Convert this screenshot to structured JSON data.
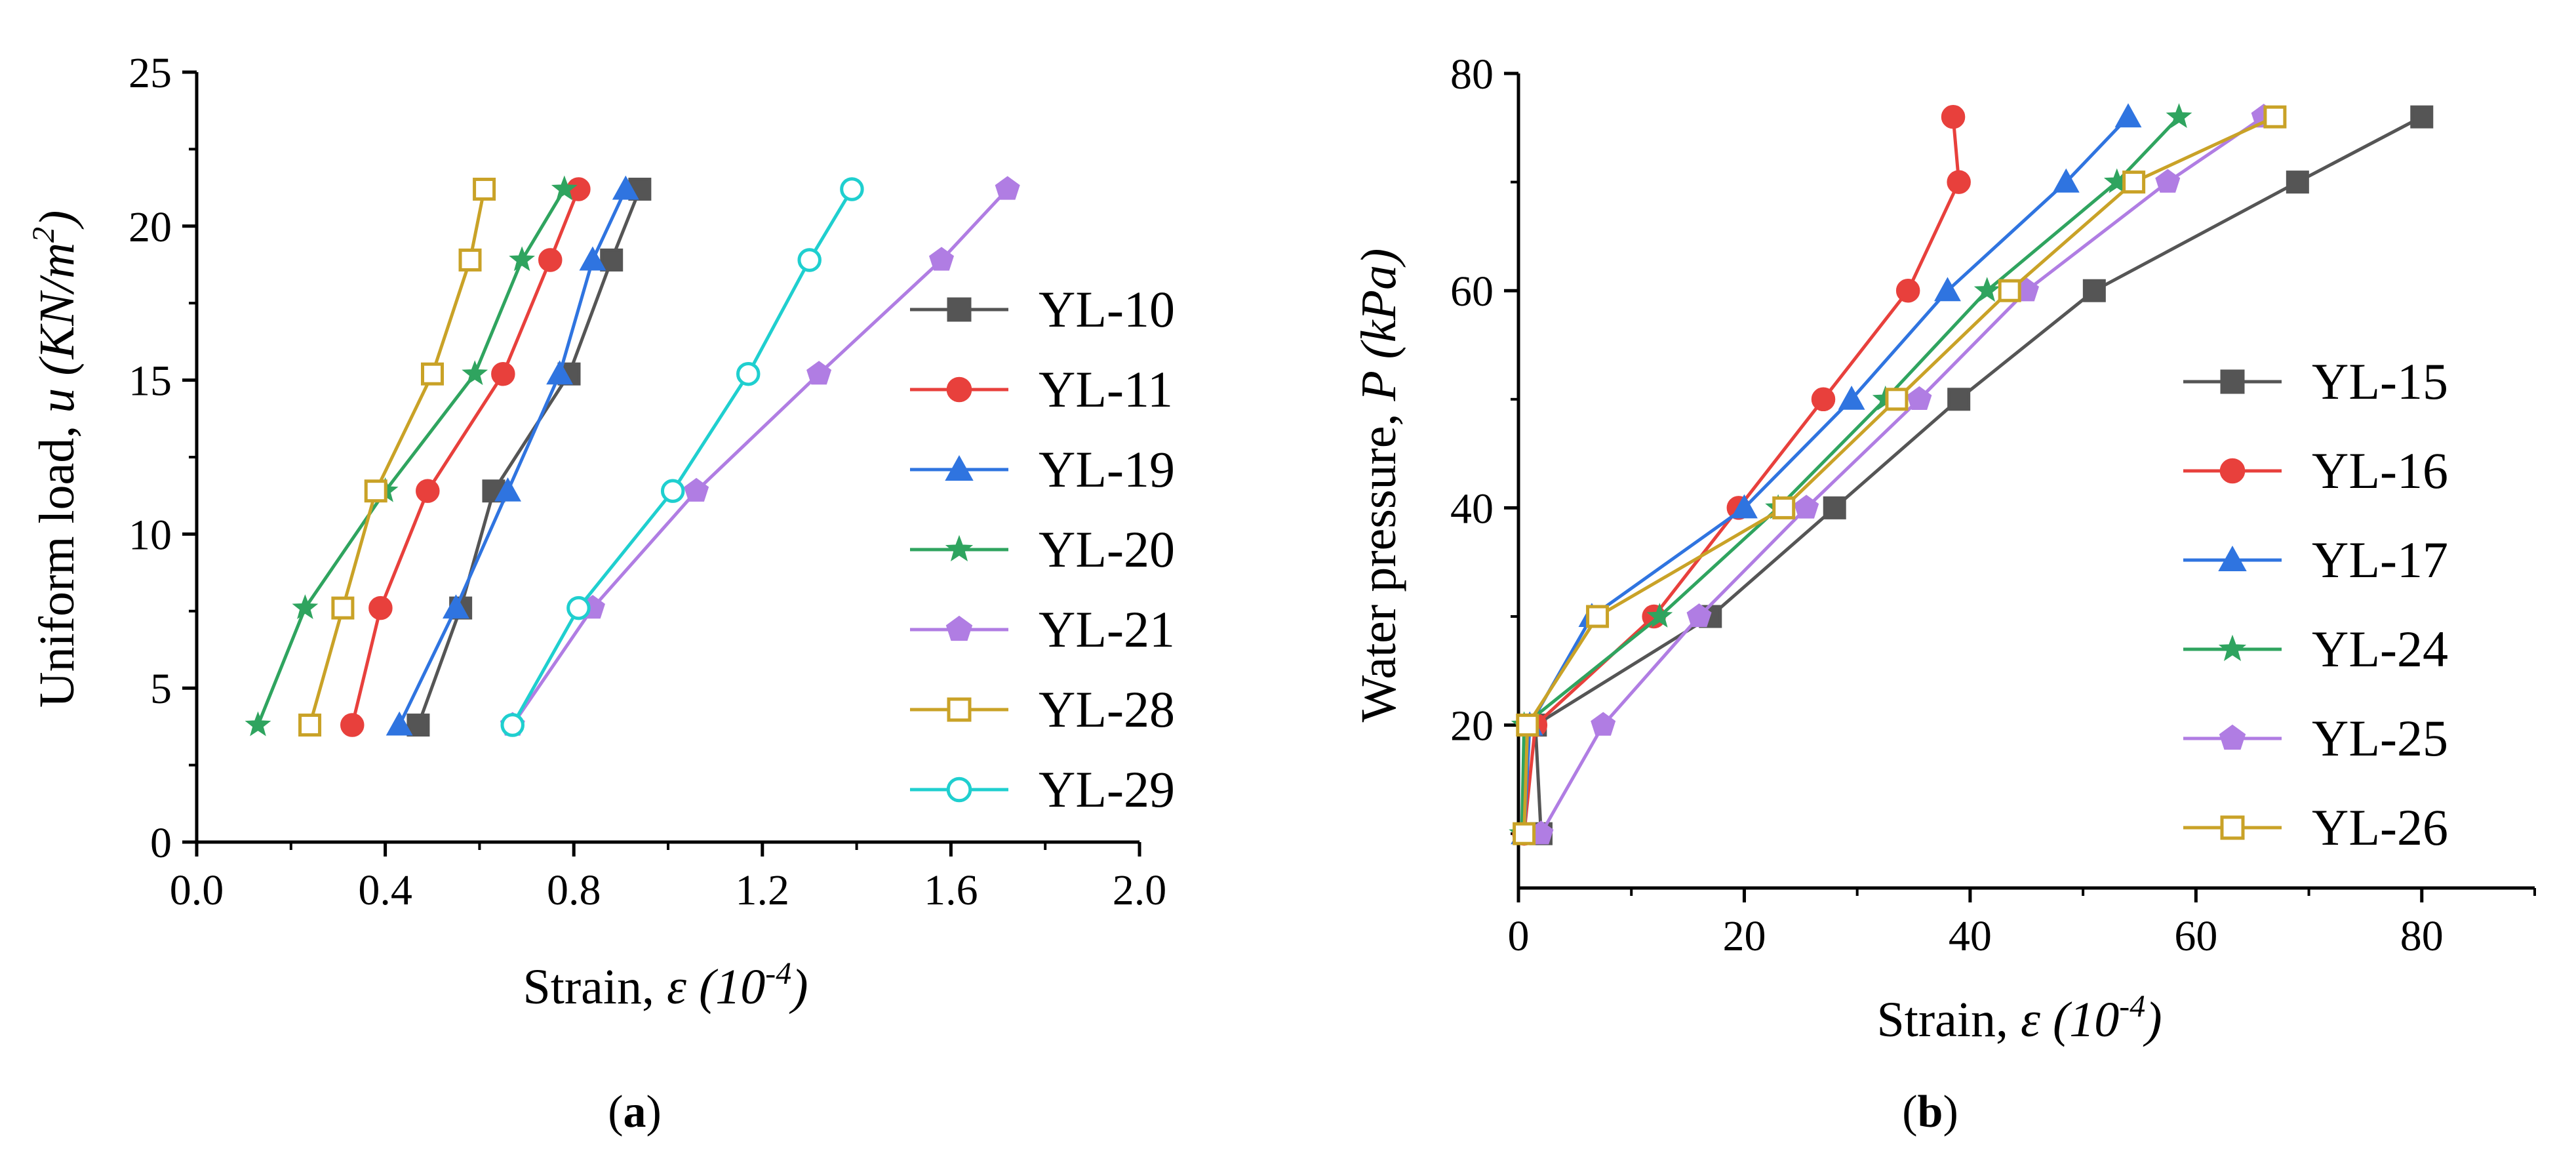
{
  "chart_data": [
    {
      "type": "line",
      "panel_label": "(a)",
      "panel_letter": "a",
      "ylabel_prefix": "Uniform load, ",
      "ylabel_var": "u",
      "ylabel_unit_open": " (KN/m",
      "ylabel_unit_sup": "2",
      "ylabel_unit_close": ")",
      "xlabel_prefix": "Strain, ",
      "xlabel_var": "ε",
      "xlabel_unit_open": " (10",
      "xlabel_unit_sup": "-4",
      "xlabel_unit_close": ")",
      "xlim": [
        0,
        2.0
      ],
      "ylim": [
        0,
        25
      ],
      "xticks": [
        0,
        0.4,
        0.8,
        1.2,
        1.6,
        2.0
      ],
      "xtick_labels": [
        "0.0",
        "0.4",
        "0.8",
        "1.2",
        "1.6",
        "2.0"
      ],
      "yticks": [
        0,
        5,
        10,
        15,
        20,
        25
      ],
      "ytick_labels": [
        "0",
        "5",
        "10",
        "15",
        "20",
        "25"
      ],
      "legend_position": "right",
      "series": [
        {
          "name": "YL-10",
          "color": "#555555",
          "marker": "square-filled",
          "x": [
            0.47,
            0.56,
            0.63,
            0.79,
            0.88,
            0.94
          ],
          "y": [
            3.8,
            7.6,
            11.4,
            15.2,
            18.9,
            21.2
          ]
        },
        {
          "name": "YL-11",
          "color": "#e8403c",
          "marker": "circle-filled",
          "x": [
            0.33,
            0.39,
            0.49,
            0.65,
            0.75,
            0.81
          ],
          "y": [
            3.8,
            7.6,
            11.4,
            15.2,
            18.9,
            21.2
          ]
        },
        {
          "name": "YL-19",
          "color": "#2f74e0",
          "marker": "triangle-filled",
          "x": [
            0.43,
            0.55,
            0.66,
            0.77,
            0.84,
            0.91
          ],
          "y": [
            3.8,
            7.6,
            11.4,
            15.2,
            18.9,
            21.2
          ]
        },
        {
          "name": "YL-20",
          "color": "#2fa45f",
          "marker": "star-filled",
          "x": [
            0.13,
            0.23,
            0.4,
            0.59,
            0.69,
            0.78
          ],
          "y": [
            3.8,
            7.6,
            11.4,
            15.2,
            18.9,
            21.2
          ]
        },
        {
          "name": "YL-21",
          "color": "#b07de3",
          "marker": "pentagon-filled",
          "x": [
            0.67,
            0.84,
            1.06,
            1.32,
            1.58,
            1.72
          ],
          "y": [
            3.8,
            7.6,
            11.4,
            15.2,
            18.9,
            21.2
          ]
        },
        {
          "name": "YL-28",
          "color": "#c9a227",
          "marker": "square-open",
          "x": [
            0.24,
            0.31,
            0.38,
            0.5,
            0.58,
            0.61
          ],
          "y": [
            3.8,
            7.6,
            11.4,
            15.2,
            18.9,
            21.2
          ]
        },
        {
          "name": "YL-29",
          "color": "#1fcfcf",
          "marker": "circle-open",
          "x": [
            0.67,
            0.81,
            1.01,
            1.17,
            1.3,
            1.39
          ],
          "y": [
            3.8,
            7.6,
            11.4,
            15.2,
            18.9,
            21.2
          ]
        }
      ]
    },
    {
      "type": "line",
      "panel_label": "(b)",
      "panel_letter": "b",
      "ylabel_prefix": "Water pressure, ",
      "ylabel_var": "P",
      "ylabel_unit_open": " (kPa)",
      "ylabel_unit_sup": "",
      "ylabel_unit_close": "",
      "xlabel_prefix": "Strain, ",
      "xlabel_var": "ε",
      "xlabel_unit_open": " (10",
      "xlabel_unit_sup": "-4",
      "xlabel_unit_close": ")",
      "xlim": [
        0,
        90
      ],
      "ylim": [
        5,
        80
      ],
      "xticks": [
        0,
        20,
        40,
        60,
        80
      ],
      "xtick_labels": [
        "0",
        "20",
        "40",
        "60",
        "80"
      ],
      "yticks": [
        20,
        40,
        60,
        80
      ],
      "ytick_labels": [
        "20",
        "40",
        "60",
        "80"
      ],
      "legend_position": "right",
      "series": [
        {
          "name": "YL-15",
          "color": "#555555",
          "marker": "square-filled",
          "x": [
            2.0,
            1.5,
            17.0,
            28.0,
            39.0,
            51.0,
            69.0,
            80.0
          ],
          "y": [
            10,
            20,
            30,
            40,
            50,
            60,
            70,
            76
          ]
        },
        {
          "name": "YL-16",
          "color": "#e8403c",
          "marker": "circle-filled",
          "x": [
            0.5,
            1.5,
            12.0,
            19.5,
            27.0,
            34.5,
            39.0,
            38.5
          ],
          "y": [
            10,
            20,
            30,
            40,
            50,
            60,
            70,
            76
          ]
        },
        {
          "name": "YL-17",
          "color": "#2f74e0",
          "marker": "triangle-filled",
          "x": [
            0.5,
            1.0,
            6.5,
            20.0,
            29.5,
            38.0,
            48.5,
            54.0
          ],
          "y": [
            10,
            20,
            30,
            40,
            50,
            60,
            70,
            76
          ]
        },
        {
          "name": "YL-24",
          "color": "#2fa45f",
          "marker": "star-filled",
          "x": [
            0.3,
            0.5,
            12.5,
            23.0,
            32.5,
            41.5,
            53.0,
            58.5
          ],
          "y": [
            10,
            20,
            30,
            40,
            50,
            60,
            70,
            76
          ]
        },
        {
          "name": "YL-25",
          "color": "#b07de3",
          "marker": "pentagon-filled",
          "x": [
            2.0,
            7.5,
            16.0,
            25.5,
            35.5,
            45.0,
            57.5,
            66.0
          ],
          "y": [
            10,
            20,
            30,
            40,
            50,
            60,
            70,
            76
          ]
        },
        {
          "name": "YL-26",
          "color": "#c9a227",
          "marker": "square-open",
          "x": [
            0.5,
            0.8,
            7.0,
            23.5,
            33.5,
            43.5,
            54.5,
            67.0
          ],
          "y": [
            10,
            20,
            30,
            40,
            50,
            60,
            70,
            76
          ]
        }
      ]
    }
  ]
}
